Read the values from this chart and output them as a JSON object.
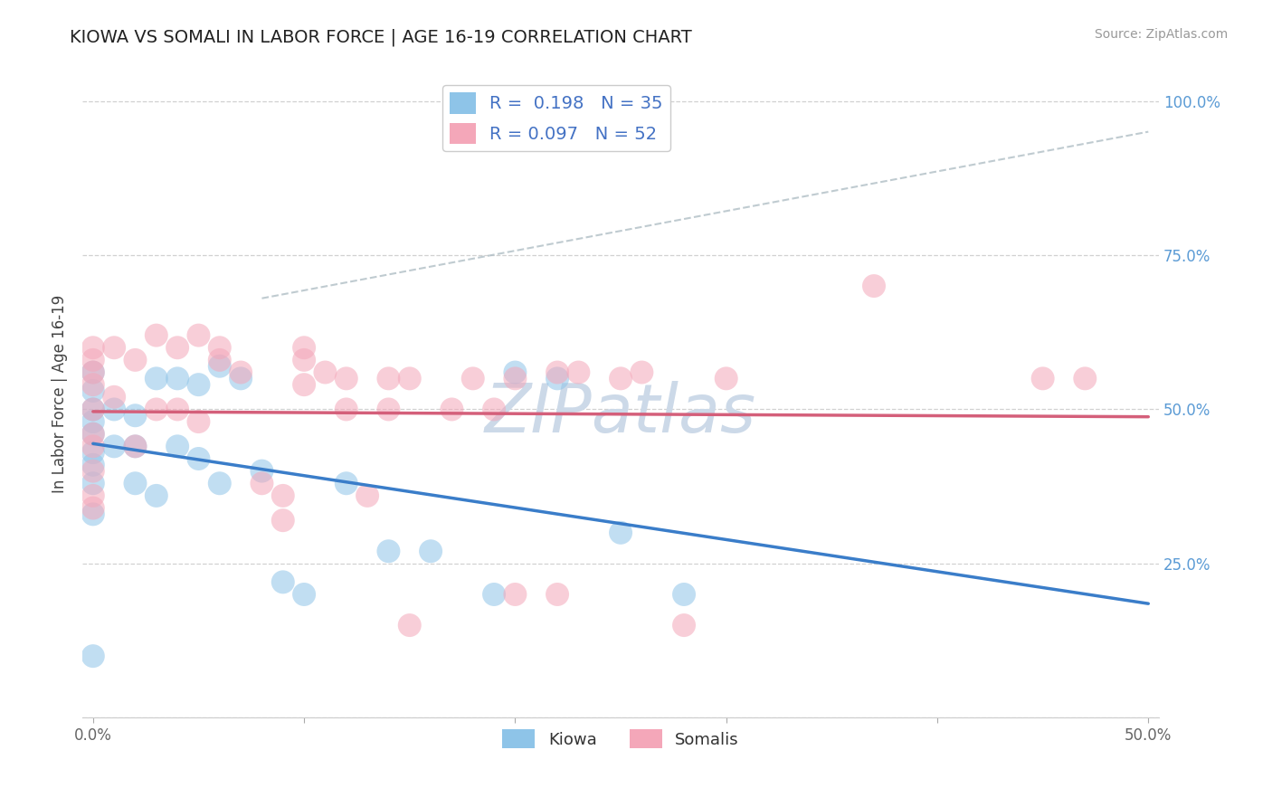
{
  "title": "KIOWA VS SOMALI IN LABOR FORCE | AGE 16-19 CORRELATION CHART",
  "source": "Source: ZipAtlas.com",
  "ylabel": "In Labor Force | Age 16-19",
  "xlim": [
    -0.005,
    0.505
  ],
  "ylim": [
    0.0,
    1.05
  ],
  "x_ticks": [
    0.0,
    0.1,
    0.2,
    0.3,
    0.4,
    0.5
  ],
  "x_tick_labels": [
    "0.0%",
    "",
    "",
    "",
    "",
    "50.0%"
  ],
  "y_ticks": [
    0.0,
    0.25,
    0.5,
    0.75,
    1.0
  ],
  "y_tick_labels_left": [
    "",
    "",
    "",
    "",
    ""
  ],
  "y_tick_labels_right": [
    "",
    "25.0%",
    "50.0%",
    "75.0%",
    "100.0%"
  ],
  "kiowa_color": "#8ec4e8",
  "somali_color": "#f4a7b9",
  "trendline_kiowa_color": "#3a7dc9",
  "trendline_somali_color": "#d45f7a",
  "trendline_dash_color": "#b0bec5",
  "kiowa_R": 0.198,
  "kiowa_N": 35,
  "somali_R": 0.097,
  "somali_N": 52,
  "kiowa_x": [
    0.0,
    0.0,
    0.0,
    0.0,
    0.0,
    0.0,
    0.0,
    0.0,
    0.0,
    0.0,
    0.01,
    0.01,
    0.02,
    0.02,
    0.02,
    0.03,
    0.03,
    0.04,
    0.04,
    0.05,
    0.05,
    0.06,
    0.06,
    0.07,
    0.08,
    0.09,
    0.1,
    0.12,
    0.14,
    0.16,
    0.19,
    0.2,
    0.22,
    0.25,
    0.28
  ],
  "kiowa_y": [
    0.43,
    0.46,
    0.5,
    0.53,
    0.56,
    0.48,
    0.41,
    0.38,
    0.33,
    0.1,
    0.44,
    0.5,
    0.44,
    0.49,
    0.38,
    0.55,
    0.36,
    0.55,
    0.44,
    0.54,
    0.42,
    0.57,
    0.38,
    0.55,
    0.4,
    0.22,
    0.2,
    0.38,
    0.27,
    0.27,
    0.2,
    0.56,
    0.55,
    0.3,
    0.2
  ],
  "somali_x": [
    0.0,
    0.0,
    0.0,
    0.0,
    0.0,
    0.0,
    0.0,
    0.0,
    0.0,
    0.0,
    0.01,
    0.01,
    0.02,
    0.02,
    0.03,
    0.03,
    0.04,
    0.04,
    0.05,
    0.05,
    0.06,
    0.06,
    0.07,
    0.08,
    0.09,
    0.09,
    0.1,
    0.1,
    0.1,
    0.11,
    0.12,
    0.12,
    0.13,
    0.14,
    0.14,
    0.15,
    0.15,
    0.17,
    0.18,
    0.19,
    0.2,
    0.2,
    0.22,
    0.22,
    0.23,
    0.25,
    0.26,
    0.28,
    0.3,
    0.37,
    0.45,
    0.47
  ],
  "somali_y": [
    0.54,
    0.56,
    0.58,
    0.6,
    0.5,
    0.46,
    0.44,
    0.4,
    0.36,
    0.34,
    0.6,
    0.52,
    0.58,
    0.44,
    0.62,
    0.5,
    0.6,
    0.5,
    0.62,
    0.48,
    0.6,
    0.58,
    0.56,
    0.38,
    0.32,
    0.36,
    0.58,
    0.54,
    0.6,
    0.56,
    0.55,
    0.5,
    0.36,
    0.55,
    0.5,
    0.55,
    0.15,
    0.5,
    0.55,
    0.5,
    0.55,
    0.2,
    0.56,
    0.2,
    0.56,
    0.55,
    0.56,
    0.15,
    0.55,
    0.7,
    0.55,
    0.55
  ],
  "background_color": "#ffffff",
  "grid_color": "#cccccc",
  "watermark_text": "ZIPatlas",
  "watermark_color": "#ccd9e8"
}
